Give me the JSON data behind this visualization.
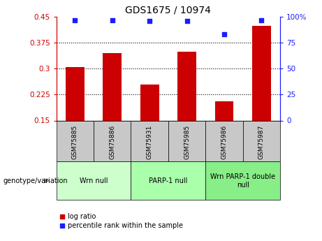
{
  "title": "GDS1675 / 10974",
  "categories": [
    "GSM75885",
    "GSM75886",
    "GSM75931",
    "GSM75985",
    "GSM75986",
    "GSM75987"
  ],
  "log_ratio": [
    0.305,
    0.345,
    0.255,
    0.35,
    0.205,
    0.425
  ],
  "percentile_rank": [
    97,
    97,
    96,
    96,
    83,
    97
  ],
  "bar_color": "#cc0000",
  "dot_color": "#1c1cff",
  "ylim_left": [
    0.15,
    0.45
  ],
  "ylim_right": [
    0,
    100
  ],
  "yticks_left": [
    0.15,
    0.225,
    0.3,
    0.375,
    0.45
  ],
  "ytick_labels_left": [
    "0.15",
    "0.225",
    "0.3",
    "0.375",
    "0.45"
  ],
  "yticks_right": [
    0,
    25,
    50,
    75,
    100
  ],
  "ytick_labels_right": [
    "0",
    "25",
    "50",
    "75",
    "100%"
  ],
  "groups": [
    {
      "label": "Wrn null",
      "indices": [
        0,
        1
      ],
      "color": "#ccffcc"
    },
    {
      "label": "PARP-1 null",
      "indices": [
        2,
        3
      ],
      "color": "#aaffaa"
    },
    {
      "label": "Wrn PARP-1 double\nnull",
      "indices": [
        4,
        5
      ],
      "color": "#88ee88"
    }
  ],
  "xlabel_area_label": "genotype/variation",
  "legend_log_ratio": "log ratio",
  "legend_percentile": "percentile rank within the sample",
  "bar_width": 0.5,
  "background_color": "#ffffff",
  "plot_bg_color": "#ffffff",
  "axis_label_color_left": "#cc0000",
  "axis_label_color_right": "#1c1cff",
  "label_box_color": "#c8c8c8",
  "title_fontsize": 10,
  "tick_fontsize": 7.5,
  "cat_fontsize": 6.5,
  "group_fontsize": 7.0,
  "legend_fontsize": 7.0
}
